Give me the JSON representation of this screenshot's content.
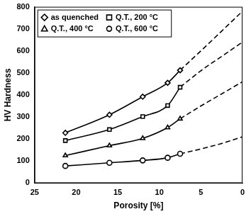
{
  "chart_data": {
    "type": "line",
    "x_label": "Porosity [%]",
    "y_label": "HV Hardness",
    "xlim": [
      0,
      25
    ],
    "xticks": [
      0,
      5,
      10,
      15,
      20,
      25
    ],
    "ylim": [
      0,
      800
    ],
    "yticks": [
      0,
      100,
      200,
      300,
      400,
      500,
      600,
      700,
      800
    ],
    "grid": false,
    "legend": "upper left",
    "series": [
      {
        "name": "as quenched",
        "color": "#000000",
        "marker": "diamond",
        "line_style": "solid",
        "x": [
          21.3,
          16,
          12,
          9,
          7.5
        ],
        "values": [
          228,
          310,
          392,
          455,
          512
        ]
      },
      {
        "name": "as quenched",
        "color": "#000000",
        "marker": "none",
        "line_style": "dashed",
        "x": [
          7.5,
          5,
          2.5,
          0
        ],
        "values": [
          512,
          600,
          690,
          780
        ]
      },
      {
        "name": "Q.T., 200 °C",
        "color": "#000000",
        "marker": "square",
        "line_style": "solid",
        "x": [
          21.3,
          16,
          12,
          9,
          7.5
        ],
        "values": [
          193,
          243,
          302,
          352,
          435
        ]
      },
      {
        "name": "Q.T., 200 °C",
        "color": "#000000",
        "marker": "none",
        "line_style": "dashed",
        "x": [
          7.5,
          5,
          2.5,
          0
        ],
        "values": [
          435,
          510,
          575,
          640
        ]
      },
      {
        "name": "Q.T., 400 °C",
        "color": "#000000",
        "marker": "triangle",
        "line_style": "solid",
        "x": [
          21.3,
          16,
          12,
          9,
          7.5
        ],
        "values": [
          125,
          170,
          203,
          252,
          292
        ]
      },
      {
        "name": "Q.T., 400 °C",
        "color": "#000000",
        "marker": "none",
        "line_style": "dashed",
        "x": [
          7.5,
          5,
          2.5,
          0
        ],
        "values": [
          292,
          350,
          405,
          460
        ]
      },
      {
        "name": "Q.T., 600 °C",
        "color": "#000000",
        "marker": "circle",
        "line_style": "solid",
        "x": [
          21.3,
          16,
          12,
          9,
          7.5
        ],
        "values": [
          78,
          92,
          103,
          115,
          133
        ]
      },
      {
        "name": "Q.T., 600 °C",
        "color": "#000000",
        "marker": "none",
        "line_style": "dashed",
        "x": [
          7.5,
          5,
          2.5,
          0
        ],
        "values": [
          133,
          155,
          180,
          210
        ]
      }
    ]
  }
}
